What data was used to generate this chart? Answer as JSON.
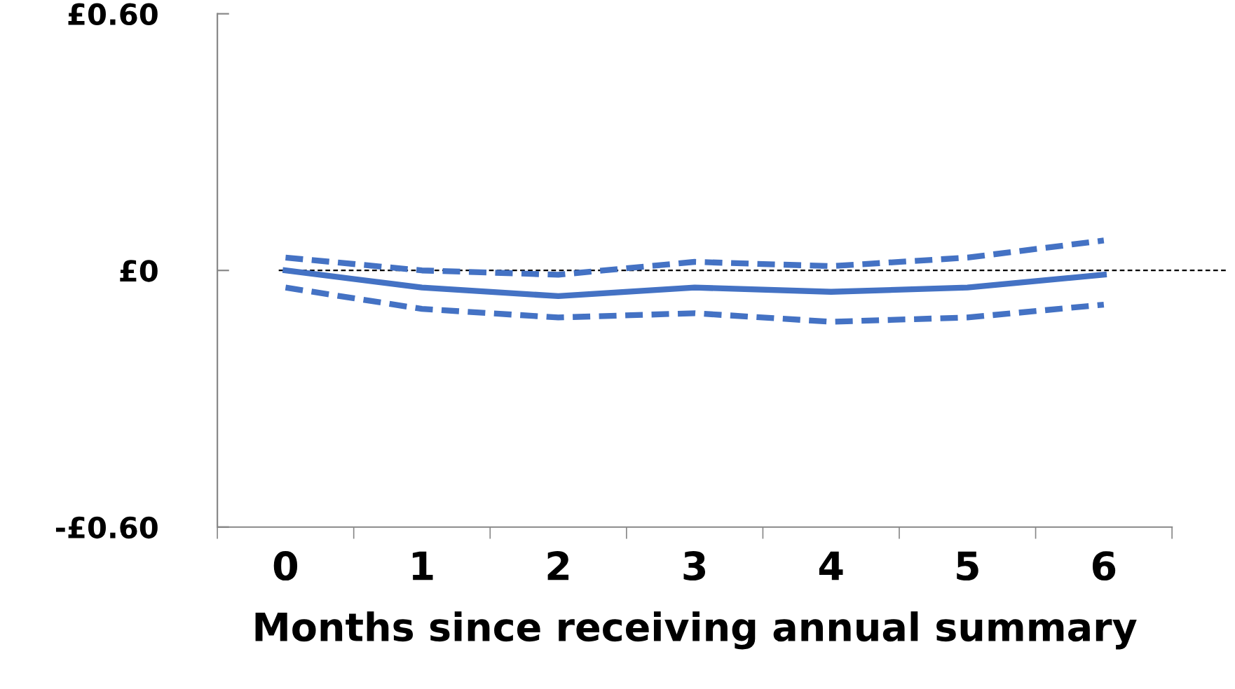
{
  "chart_data": {
    "type": "line",
    "xlabel": "Months since receiving annual summary",
    "categories": [
      "0",
      "1",
      "2",
      "3",
      "4",
      "5",
      "6"
    ],
    "series": [
      {
        "color": "#4472c4",
        "line_style": "solid",
        "values": [
          0.0,
          -0.04,
          -0.06,
          -0.04,
          -0.05,
          -0.04,
          -0.01
        ]
      },
      {
        "color": "#4472c4",
        "line_style": "dashed",
        "values": [
          0.03,
          0.0,
          -0.01,
          0.02,
          0.01,
          0.03,
          0.07
        ]
      },
      {
        "color": "#4472c4",
        "line_style": "dashed",
        "values": [
          -0.04,
          -0.09,
          -0.11,
          -0.1,
          -0.12,
          -0.11,
          -0.08
        ]
      }
    ],
    "ylim": [
      -0.6,
      0.6
    ],
    "yticks": [
      {
        "value": -0.6,
        "label": "-£0.60"
      },
      {
        "value": 0,
        "label": "£0"
      },
      {
        "value": 0.6,
        "label": "£0.60"
      }
    ],
    "ref_lines": [
      {
        "axis": "y",
        "value": 0,
        "color": "#000000",
        "line_style": "dashed"
      }
    ],
    "grid": false,
    "legend": false,
    "marker": "none"
  }
}
